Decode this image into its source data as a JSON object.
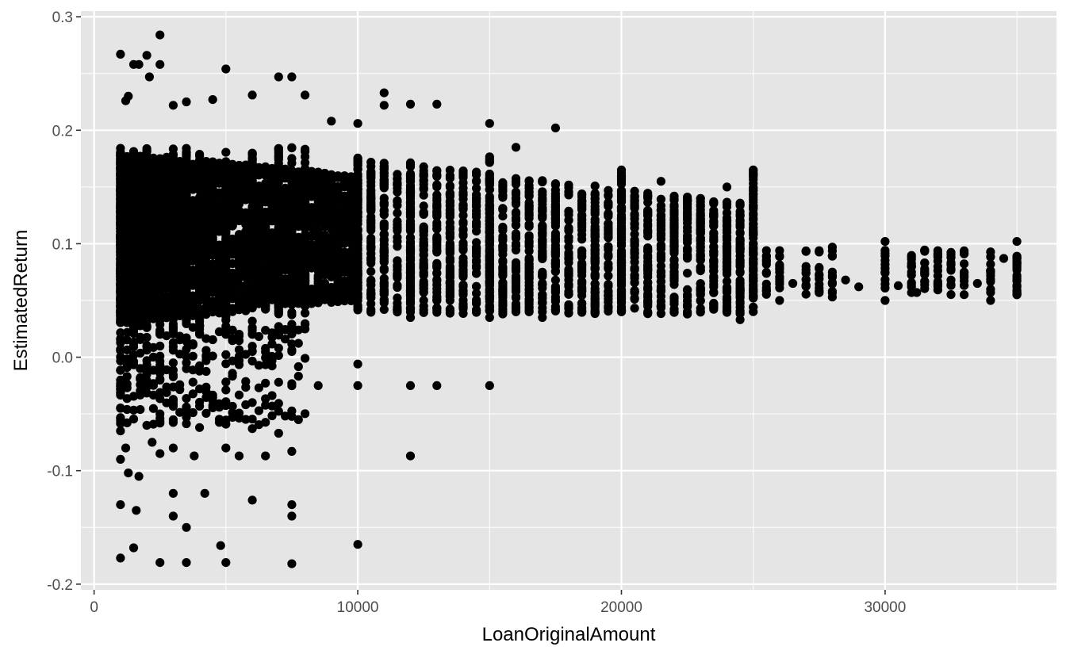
{
  "chart_data": {
    "type": "scatter",
    "title": "",
    "xlabel": "LoanOriginalAmount",
    "ylabel": "EstimatedReturn",
    "xlim": [
      -500,
      36500
    ],
    "ylim": [
      -0.205,
      0.305
    ],
    "x_ticks": [
      0,
      10000,
      20000,
      30000
    ],
    "x_tick_labels": [
      "0",
      "10000",
      "20000",
      "30000"
    ],
    "y_ticks": [
      -0.2,
      -0.1,
      0.0,
      0.1,
      0.2,
      0.3
    ],
    "y_tick_labels": [
      "-0.2",
      "-0.1",
      "0.0",
      "0.1",
      "0.2",
      "0.3"
    ],
    "grid": true,
    "legend": "none",
    "colors": {
      "panel": "#e5e5e5",
      "grid": "#ffffff",
      "point": "#000000",
      "tick_text": "#4d4d4d"
    },
    "series": [
      {
        "points": [
          [
            1000,
            0.267
          ],
          [
            1200,
            0.226
          ],
          [
            1300,
            0.23
          ],
          [
            1500,
            0.258
          ],
          [
            1700,
            0.258
          ],
          [
            2000,
            0.266
          ],
          [
            2100,
            0.247
          ],
          [
            2500,
            0.284
          ],
          [
            2500,
            0.258
          ],
          [
            3000,
            0.222
          ],
          [
            3500,
            0.225
          ],
          [
            4500,
            0.227
          ],
          [
            5000,
            0.254
          ],
          [
            6000,
            0.231
          ],
          [
            7000,
            0.247
          ],
          [
            7500,
            0.247
          ],
          [
            8000,
            0.231
          ],
          [
            9000,
            0.208
          ],
          [
            10000,
            0.206
          ],
          [
            11000,
            0.233
          ],
          [
            11000,
            0.222
          ],
          [
            12000,
            0.223
          ],
          [
            13000,
            0.223
          ],
          [
            15000,
            0.206
          ],
          [
            16000,
            0.185
          ],
          [
            17500,
            0.202
          ],
          [
            20000,
            0.165
          ],
          [
            21500,
            0.155
          ],
          [
            24000,
            0.15
          ],
          [
            25000,
            0.165
          ],
          [
            25500,
            0.084
          ],
          [
            26000,
            0.08
          ],
          [
            26000,
            0.05
          ],
          [
            26500,
            0.065
          ],
          [
            27000,
            0.08
          ],
          [
            27500,
            0.073
          ],
          [
            28000,
            0.097
          ],
          [
            28000,
            0.053
          ],
          [
            28500,
            0.068
          ],
          [
            29000,
            0.062
          ],
          [
            30000,
            0.102
          ],
          [
            30000,
            0.05
          ],
          [
            30500,
            0.063
          ],
          [
            31000,
            0.088
          ],
          [
            31200,
            0.057
          ],
          [
            31500,
            0.067
          ],
          [
            31500,
            0.094
          ],
          [
            32000,
            0.08
          ],
          [
            32500,
            0.068
          ],
          [
            33000,
            0.075
          ],
          [
            33500,
            0.065
          ],
          [
            34000,
            0.082
          ],
          [
            34000,
            0.05
          ],
          [
            34500,
            0.087
          ],
          [
            35000,
            0.102
          ],
          [
            35000,
            0.055
          ],
          [
            1000,
            -0.025
          ],
          [
            1000,
            -0.045
          ],
          [
            1000,
            -0.065
          ],
          [
            1000,
            -0.09
          ],
          [
            1000,
            -0.13
          ],
          [
            1000,
            -0.177
          ],
          [
            1200,
            -0.08
          ],
          [
            1300,
            -0.102
          ],
          [
            1500,
            -0.168
          ],
          [
            1600,
            -0.135
          ],
          [
            1700,
            -0.105
          ],
          [
            2000,
            -0.06
          ],
          [
            2200,
            -0.075
          ],
          [
            2500,
            -0.085
          ],
          [
            2500,
            -0.181
          ],
          [
            3000,
            -0.12
          ],
          [
            3000,
            -0.14
          ],
          [
            3000,
            -0.08
          ],
          [
            3500,
            -0.15
          ],
          [
            3500,
            -0.181
          ],
          [
            3800,
            -0.087
          ],
          [
            4000,
            -0.062
          ],
          [
            4200,
            -0.12
          ],
          [
            4800,
            -0.166
          ],
          [
            5000,
            -0.08
          ],
          [
            5000,
            -0.181
          ],
          [
            5500,
            -0.087
          ],
          [
            6000,
            -0.126
          ],
          [
            6000,
            -0.063
          ],
          [
            6500,
            -0.087
          ],
          [
            7000,
            -0.067
          ],
          [
            7500,
            -0.083
          ],
          [
            7500,
            -0.13
          ],
          [
            7500,
            -0.14
          ],
          [
            7500,
            -0.182
          ],
          [
            10000,
            -0.165
          ],
          [
            12000,
            -0.087
          ],
          [
            10000,
            -0.006
          ],
          [
            10000,
            -0.025
          ],
          [
            12000,
            -0.025
          ],
          [
            13000,
            -0.025
          ],
          [
            15000,
            -0.025
          ],
          [
            8000,
            -0.001
          ],
          [
            8500,
            -0.025
          ],
          [
            6000,
            0.005
          ],
          [
            7000,
            0.008
          ],
          [
            24500,
            0.033
          ],
          [
            23500,
            0.045
          ],
          [
            22500,
            0.04
          ],
          [
            12000,
            0.035
          ],
          [
            15000,
            0.035
          ],
          [
            16500,
            0.04
          ],
          [
            17000,
            0.035
          ],
          [
            19000,
            0.04
          ],
          [
            21000,
            0.04
          ]
        ]
      }
    ]
  }
}
